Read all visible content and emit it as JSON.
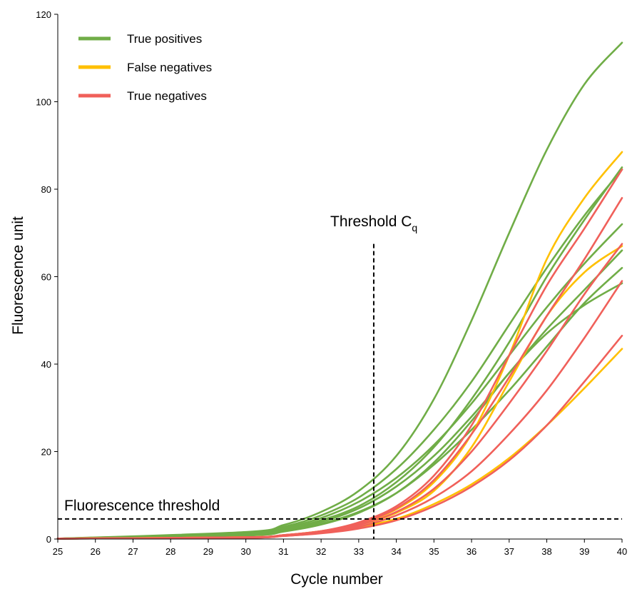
{
  "chart_data": {
    "type": "line",
    "xlabel": "Cycle number",
    "ylabel": "Fluorescence unit",
    "xlim": [
      25,
      40
    ],
    "ylim": [
      0,
      120
    ],
    "x_ticks": [
      25,
      26,
      27,
      28,
      29,
      30,
      31,
      32,
      33,
      34,
      35,
      36,
      37,
      38,
      39,
      40
    ],
    "y_ticks": [
      0,
      20,
      40,
      60,
      80,
      100,
      120
    ],
    "grid": false,
    "legend_position": "top-left",
    "legend": [
      {
        "label": "True positives",
        "color": "#70ad47"
      },
      {
        "label": "False negatives",
        "color": "#ffc000"
      },
      {
        "label": "True negatives",
        "color": "#f0605a"
      }
    ],
    "annotations": {
      "threshold_cq": {
        "label": "Threshold C",
        "subscript": "q",
        "x": 33.4,
        "y_top": 67.5
      },
      "fluorescence_threshold": {
        "label": "Fluorescence threshold",
        "y": 4.6
      }
    },
    "x": [
      25,
      30,
      31,
      32,
      33,
      34,
      35,
      36,
      37,
      38,
      39,
      40
    ],
    "series": [
      {
        "group": "True positives",
        "color": "#70ad47",
        "values": [
          0.1,
          1.6,
          3.2,
          6.2,
          11.0,
          19.0,
          32.0,
          50.0,
          70.0,
          89.0,
          104.0,
          113.5
        ]
      },
      {
        "group": "True positives",
        "color": "#70ad47",
        "values": [
          0.1,
          1.4,
          2.8,
          5.4,
          9.5,
          16.0,
          25.0,
          36.0,
          49.0,
          62.0,
          74.0,
          84.5
        ]
      },
      {
        "group": "True positives",
        "color": "#70ad47",
        "values": [
          0.1,
          1.2,
          2.5,
          4.8,
          8.5,
          14.0,
          21.5,
          31.0,
          42.0,
          53.0,
          63.0,
          72.0
        ]
      },
      {
        "group": "True positives",
        "color": "#70ad47",
        "values": [
          0.1,
          1.1,
          2.2,
          4.3,
          7.5,
          13.0,
          21.0,
          32.0,
          45.0,
          60.0,
          73.0,
          85.0
        ]
      },
      {
        "group": "True positives",
        "color": "#70ad47",
        "values": [
          0.1,
          1.0,
          2.0,
          3.9,
          7.0,
          12.0,
          19.0,
          28.0,
          38.0,
          48.0,
          57.0,
          66.0
        ]
      },
      {
        "group": "True positives",
        "color": "#70ad47",
        "values": [
          0.1,
          0.9,
          1.8,
          3.5,
          6.2,
          10.5,
          17.0,
          25.0,
          34.0,
          44.0,
          54.0,
          62.0
        ]
      },
      {
        "group": "True positives",
        "color": "#70ad47",
        "values": [
          0.1,
          0.8,
          1.7,
          3.3,
          6.0,
          10.5,
          17.5,
          27.0,
          38.0,
          47.0,
          53.5,
          58.5
        ]
      },
      {
        "group": "False negatives",
        "color": "#ffc000",
        "values": [
          0.1,
          0.4,
          0.9,
          1.8,
          3.5,
          6.8,
          13.0,
          24.0,
          42.0,
          64.0,
          78.0,
          88.5
        ]
      },
      {
        "group": "False negatives",
        "color": "#ffc000",
        "values": [
          0.1,
          0.4,
          0.9,
          1.8,
          3.2,
          6.0,
          11.0,
          21.0,
          36.0,
          51.0,
          61.0,
          67.0
        ]
      },
      {
        "group": "False negatives",
        "color": "#ffc000",
        "values": [
          0.1,
          0.4,
          0.8,
          1.5,
          2.7,
          4.6,
          8.0,
          12.5,
          18.5,
          26.0,
          34.5,
          43.5
        ]
      },
      {
        "group": "True negatives",
        "color": "#f0605a",
        "values": [
          0.1,
          0.4,
          0.9,
          1.8,
          3.8,
          7.5,
          14.5,
          26.0,
          42.0,
          58.0,
          71.0,
          84.5
        ]
      },
      {
        "group": "True negatives",
        "color": "#f0605a",
        "values": [
          0.1,
          0.4,
          0.9,
          1.8,
          3.6,
          7.0,
          13.5,
          24.0,
          37.0,
          51.0,
          64.0,
          78.0
        ]
      },
      {
        "group": "True negatives",
        "color": "#f0605a",
        "values": [
          0.1,
          0.3,
          0.8,
          1.6,
          3.2,
          6.2,
          11.5,
          20.0,
          31.0,
          43.0,
          56.0,
          67.5
        ]
      },
      {
        "group": "True negatives",
        "color": "#f0605a",
        "values": [
          0.1,
          0.3,
          0.7,
          1.4,
          2.8,
          5.4,
          9.5,
          15.5,
          24.0,
          34.0,
          46.0,
          59.0
        ]
      },
      {
        "group": "True negatives",
        "color": "#f0605a",
        "values": [
          0.1,
          0.3,
          0.7,
          1.3,
          2.4,
          4.3,
          7.5,
          12.0,
          18.0,
          26.0,
          36.0,
          46.5
        ]
      }
    ]
  }
}
